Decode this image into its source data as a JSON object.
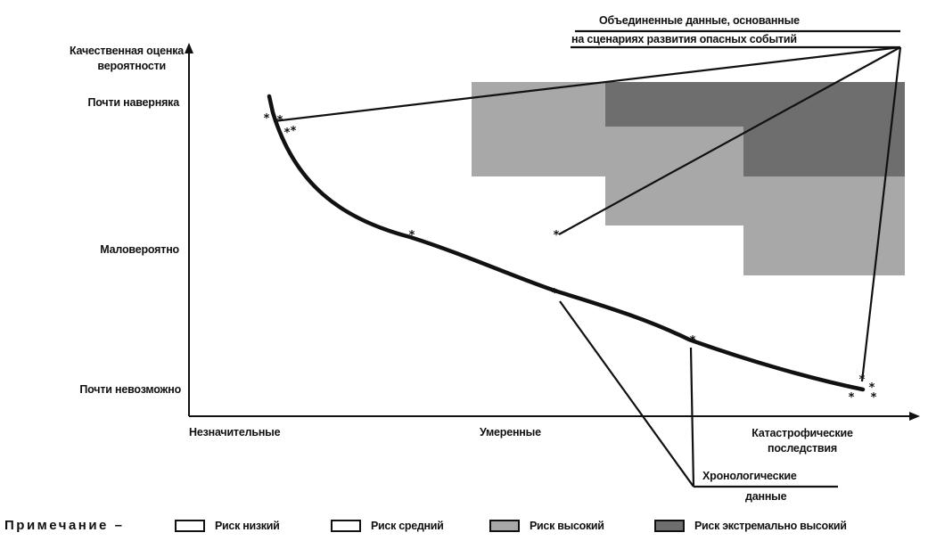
{
  "axes": {
    "y_title_line1": "Качественная оценка",
    "y_title_line2": "вероятности",
    "y_levels": [
      "Почти наверняка",
      "Маловероятно",
      "Почти невозможно"
    ],
    "x_levels": [
      "Незначительные",
      "Умеренные",
      "Катастрофические последствия"
    ]
  },
  "labels": {
    "combined_line1": "Объединенные данные, основанные",
    "combined_line2": "на сценариях развития опасных событий",
    "historical_line1": "Хронологические",
    "historical_line2": "данные"
  },
  "legend": {
    "note": "Примечание –",
    "items": [
      {
        "label": "Риск низкий",
        "color": "#ffffff"
      },
      {
        "label": "Риск средний",
        "color": "#ffffff"
      },
      {
        "label": "Риск высокий",
        "color": "#a8a8a8"
      },
      {
        "label": "Риск экстремально высокий",
        "color": "#6e6e6e"
      }
    ]
  },
  "colors": {
    "high_risk": "#a8a8a8",
    "extreme_risk": "#6e6e6e",
    "line": "#111111"
  }
}
